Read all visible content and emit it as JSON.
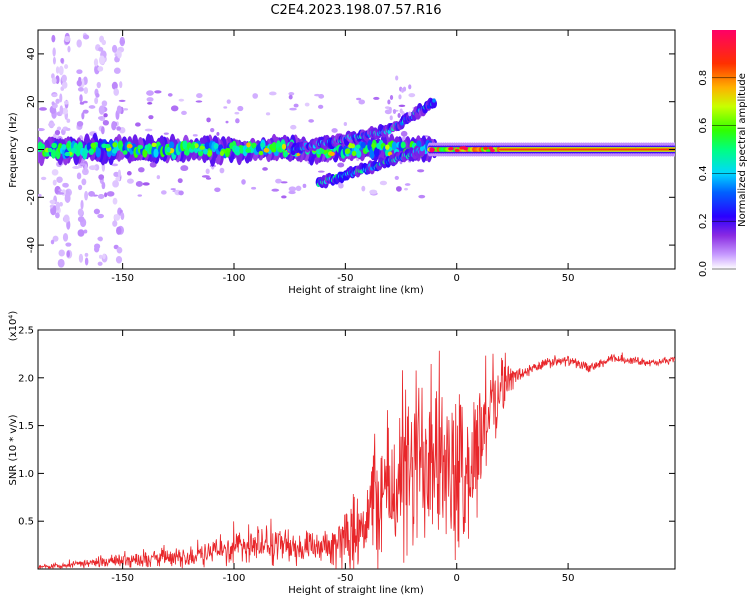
{
  "title": "C2E4.2023.198.07.57.R16",
  "colors": {
    "line": "#e8262a",
    "axis": "#000000",
    "background": "#ffffff",
    "colormap": [
      "#f2e8ff",
      "#c79bff",
      "#8a2be2",
      "#3a00ff",
      "#0000ff",
      "#00a0ff",
      "#00e5e5",
      "#00ff00",
      "#ffff00",
      "#ff8000",
      "#ff0000",
      "#ff0066"
    ]
  },
  "chart_data": [
    {
      "type": "heatmap",
      "title": "C2E4.2023.198.07.57.R16",
      "xlabel": "Height of straight line (km)",
      "ylabel": "Frequency (Hz)",
      "xlim": [
        -188,
        98
      ],
      "ylim": [
        -50,
        50
      ],
      "x_ticks": [
        -150,
        -100,
        -50,
        0,
        50
      ],
      "y_ticks": [
        -40,
        -20,
        0,
        20,
        40
      ],
      "colorbar": {
        "label": "Normalized spectral amplitude",
        "range": [
          0.0,
          1.0
        ],
        "ticks": [
          "0.0",
          "0.2",
          "0.4",
          "0.6",
          "0.8"
        ]
      },
      "features": {
        "main_band_freq_hz": 0,
        "main_band_halfwidth_hz": 5,
        "rising_branch": {
          "x": [
            -75,
            -30,
            -10
          ],
          "y": [
            0,
            8,
            20
          ]
        },
        "falling_branch": {
          "x": [
            -62,
            -30,
            -15
          ],
          "y": [
            -14,
            -5,
            0
          ]
        },
        "saturated_segment_x": [
          20,
          95
        ]
      }
    },
    {
      "type": "line",
      "xlabel": "Height of straight line (km)",
      "ylabel": "SNR (10 * v/v)",
      "y_scale_label": "(x10⁴)",
      "xlim": [
        -188,
        98
      ],
      "ylim": [
        0,
        2.5
      ],
      "x_ticks": [
        -150,
        -100,
        -50,
        0,
        50
      ],
      "y_ticks": [
        0.5,
        1.0,
        1.5,
        2.0,
        2.5
      ],
      "series": [
        {
          "name": "SNR",
          "x": [
            -188,
            -170,
            -145,
            -120,
            -110,
            -100,
            -90,
            -80,
            -70,
            -60,
            -55,
            -50,
            -45,
            -40,
            -35,
            -30,
            -25,
            -20,
            -15,
            -10,
            -5,
            0,
            5,
            10,
            15,
            20,
            25,
            30,
            40,
            50,
            60,
            70,
            80,
            90,
            98
          ],
          "y": [
            0.02,
            0.05,
            0.1,
            0.12,
            0.18,
            0.22,
            0.25,
            0.25,
            0.22,
            0.2,
            0.25,
            0.3,
            0.45,
            0.55,
            0.75,
            0.85,
            0.9,
            1.0,
            1.2,
            1.4,
            1.0,
            0.9,
            1.0,
            1.3,
            1.7,
            1.9,
            2.0,
            2.05,
            2.15,
            2.18,
            2.1,
            2.2,
            2.18,
            2.15,
            2.2
          ],
          "spread": [
            0.02,
            0.04,
            0.08,
            0.1,
            0.14,
            0.18,
            0.2,
            0.2,
            0.18,
            0.15,
            0.25,
            0.3,
            0.45,
            0.55,
            0.7,
            0.8,
            0.9,
            1.0,
            1.1,
            1.0,
            0.9,
            0.8,
            0.8,
            0.7,
            0.5,
            0.3,
            0.12,
            0.08,
            0.06,
            0.05,
            0.05,
            0.05,
            0.04,
            0.04,
            0.04
          ]
        }
      ]
    }
  ]
}
